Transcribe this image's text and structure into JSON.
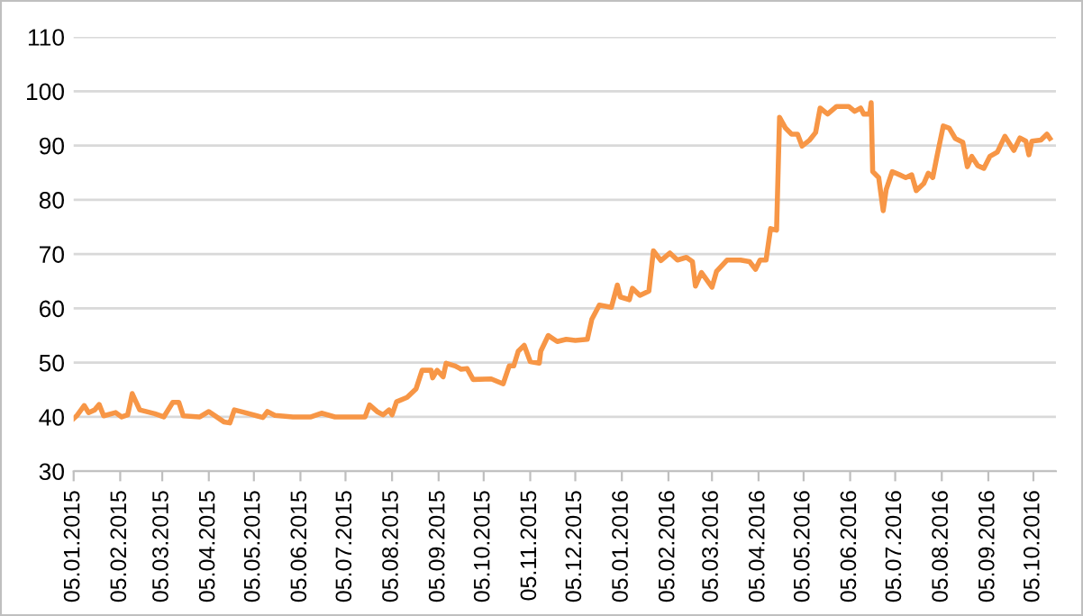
{
  "chart_data": {
    "type": "line",
    "xlim": [
      "2015-01-05",
      "2016-10-20"
    ],
    "ylim": [
      30,
      110
    ],
    "yticks": [
      30,
      40,
      50,
      60,
      70,
      80,
      90,
      100,
      110
    ],
    "xticks": [
      {
        "value": "2015-01-05",
        "label": "05.01.2015"
      },
      {
        "value": "2015-02-05",
        "label": "05.02.2015"
      },
      {
        "value": "2015-03-05",
        "label": "05.03.2015"
      },
      {
        "value": "2015-04-05",
        "label": "05.04.2015"
      },
      {
        "value": "2015-05-05",
        "label": "05.05.2015"
      },
      {
        "value": "2015-06-05",
        "label": "05.06.2015"
      },
      {
        "value": "2015-07-05",
        "label": "05.07.2015"
      },
      {
        "value": "2015-08-05",
        "label": "05.08.2015"
      },
      {
        "value": "2015-09-05",
        "label": "05.09.2015"
      },
      {
        "value": "2015-10-05",
        "label": "05.10.2015"
      },
      {
        "value": "2015-11-05",
        "label": "05.11.2015"
      },
      {
        "value": "2015-12-05",
        "label": "05.12.2015"
      },
      {
        "value": "2016-01-05",
        "label": "05.01.2016"
      },
      {
        "value": "2016-02-05",
        "label": "05.02.2016"
      },
      {
        "value": "2016-03-05",
        "label": "05.03.2016"
      },
      {
        "value": "2016-04-05",
        "label": "05.04.2016"
      },
      {
        "value": "2016-05-05",
        "label": "05.05.2016"
      },
      {
        "value": "2016-06-05",
        "label": "05.06.2016"
      },
      {
        "value": "2016-07-05",
        "label": "05.07.2016"
      },
      {
        "value": "2016-08-05",
        "label": "05.08.2016"
      },
      {
        "value": "2016-09-05",
        "label": "05.09.2016"
      },
      {
        "value": "2016-10-05",
        "label": "05.10.2016"
      }
    ],
    "grid": "y",
    "legend": false,
    "marker": "none",
    "line_style": "solid",
    "x": [
      "2015-01-05",
      "2015-01-07",
      "2015-01-12",
      "2015-01-15",
      "2015-01-19",
      "2015-01-22",
      "2015-01-25",
      "2015-02-02",
      "2015-02-06",
      "2015-02-10",
      "2015-02-13",
      "2015-02-18",
      "2015-02-28",
      "2015-03-06",
      "2015-03-12",
      "2015-03-16",
      "2015-03-19",
      "2015-03-30",
      "2015-04-05",
      "2015-04-15",
      "2015-04-19",
      "2015-04-22",
      "2015-04-29",
      "2015-05-07",
      "2015-05-11",
      "2015-05-14",
      "2015-05-19",
      "2015-05-31",
      "2015-06-12",
      "2015-06-19",
      "2015-06-28",
      "2015-07-18",
      "2015-07-21",
      "2015-07-26",
      "2015-07-30",
      "2015-08-03",
      "2015-08-05",
      "2015-08-08",
      "2015-08-15",
      "2015-08-21",
      "2015-08-25",
      "2015-08-31",
      "2015-09-01",
      "2015-09-04",
      "2015-09-08",
      "2015-09-10",
      "2015-09-16",
      "2015-09-20",
      "2015-09-24",
      "2015-09-28",
      "2015-10-10",
      "2015-10-18",
      "2015-10-22",
      "2015-10-25",
      "2015-10-28",
      "2015-11-01",
      "2015-11-05",
      "2015-11-11",
      "2015-11-12",
      "2015-11-17",
      "2015-11-23",
      "2015-11-29",
      "2015-12-05",
      "2015-12-13",
      "2015-12-16",
      "2015-12-21",
      "2015-12-29",
      "2016-01-02",
      "2016-01-04",
      "2016-01-10",
      "2016-01-12",
      "2016-01-17",
      "2016-01-23",
      "2016-01-26",
      "2016-01-31",
      "2016-02-06",
      "2016-02-11",
      "2016-02-17",
      "2016-02-21",
      "2016-02-23",
      "2016-02-27",
      "2016-03-05",
      "2016-03-08",
      "2016-03-15",
      "2016-03-24",
      "2016-03-30",
      "2016-04-03",
      "2016-04-06",
      "2016-04-10",
      "2016-04-13",
      "2016-04-17",
      "2016-04-19",
      "2016-04-23",
      "2016-04-27",
      "2016-05-01",
      "2016-05-04",
      "2016-05-09",
      "2016-05-13",
      "2016-05-16",
      "2016-05-21",
      "2016-05-27",
      "2016-06-04",
      "2016-06-08",
      "2016-06-12",
      "2016-06-14",
      "2016-06-18",
      "2016-06-19",
      "2016-06-20",
      "2016-06-24",
      "2016-06-27",
      "2016-06-29",
      "2016-07-03",
      "2016-07-08",
      "2016-07-12",
      "2016-07-16",
      "2016-07-19",
      "2016-07-24",
      "2016-07-27",
      "2016-07-30",
      "2016-08-02",
      "2016-08-06",
      "2016-08-10",
      "2016-08-14",
      "2016-08-19",
      "2016-08-22",
      "2016-08-25",
      "2016-08-29",
      "2016-09-02",
      "2016-09-06",
      "2016-09-11",
      "2016-09-16",
      "2016-09-22",
      "2016-09-26",
      "2016-09-30",
      "2016-10-02",
      "2016-10-04",
      "2016-10-10",
      "2016-10-14",
      "2016-10-16"
    ],
    "series": [
      {
        "color": "#f79646",
        "values": [
          39.7,
          40.2,
          42.1,
          40.8,
          41.3,
          42.3,
          40.2,
          40.8,
          40,
          40.4,
          44.3,
          41.3,
          40.6,
          40,
          42.7,
          42.7,
          40.2,
          40,
          41,
          39.1,
          38.9,
          41.3,
          40.8,
          40.2,
          39.9,
          41,
          40.3,
          40,
          40,
          40.7,
          40,
          40,
          42.2,
          41,
          40.4,
          41.3,
          40.4,
          42.8,
          43.6,
          45.2,
          48.6,
          48.6,
          47.2,
          48.6,
          47.4,
          49.9,
          49.4,
          48.8,
          48.9,
          46.9,
          47,
          46.1,
          49.4,
          49.4,
          52.1,
          53.2,
          50.2,
          49.9,
          52.1,
          55,
          53.9,
          54.3,
          54.1,
          54.3,
          58,
          60.6,
          60.2,
          64.3,
          62.1,
          61.6,
          63.7,
          62.4,
          63.2,
          70.6,
          68.8,
          70.2,
          68.9,
          69.4,
          68.6,
          64.1,
          66.6,
          63.9,
          66.8,
          68.9,
          68.9,
          68.6,
          67.2,
          68.9,
          68.9,
          74.7,
          74.4,
          95.2,
          93.2,
          92.1,
          92.1,
          89.9,
          91,
          92.4,
          96.9,
          95.8,
          97.2,
          97.2,
          96.3,
          96.9,
          95.8,
          95.8,
          97.9,
          85.2,
          84.1,
          78,
          81.9,
          85.2,
          84.6,
          84.1,
          84.6,
          81.7,
          83,
          84.9,
          84.1,
          88.3,
          93.6,
          93.2,
          91.3,
          90.6,
          86.1,
          88,
          86.3,
          85.8,
          88,
          88.8,
          91.7,
          89.1,
          91.4,
          90.8,
          88.3,
          90.8,
          91,
          92.1,
          91.3
        ]
      }
    ]
  }
}
